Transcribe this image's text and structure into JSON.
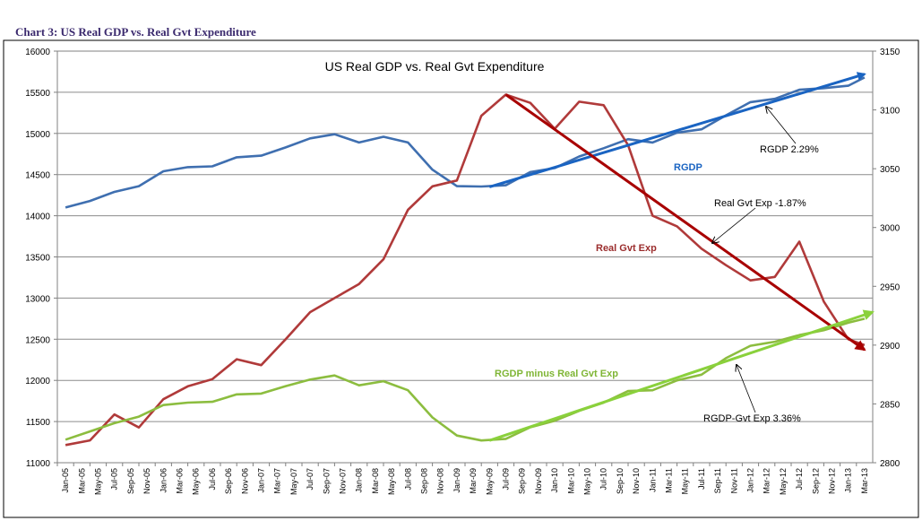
{
  "caption": "Chart 3: US Real GDP vs. Real Gvt Expenditure",
  "colors": {
    "rgdp": "#3f6fb0",
    "rgdp_trend": "#1a64c2",
    "gvt": "#b03a3a",
    "gvt_trend": "#a80000",
    "diff": "#8cbd3f",
    "diff_trend": "#8ad13c",
    "caption": "#3b2a6e"
  },
  "chart_data": {
    "type": "line",
    "title": "US Real GDP vs. Real Gvt Expenditure",
    "left_axis": {
      "min": 11000,
      "max": 16000,
      "step": 500
    },
    "right_axis": {
      "min": 2800,
      "max": 3150,
      "step": 50
    },
    "grid": true,
    "x_labels": [
      "Jan-05",
      "Mar-05",
      "May-05",
      "Jul-05",
      "Sep-05",
      "Nov-05",
      "Jan-06",
      "Mar-06",
      "May-06",
      "Jul-06",
      "Sep-06",
      "Nov-06",
      "Jan-07",
      "Mar-07",
      "May-07",
      "Jul-07",
      "Sep-07",
      "Nov-07",
      "Jan-08",
      "Mar-08",
      "May-08",
      "Jul-08",
      "Sep-08",
      "Nov-08",
      "Jan-09",
      "Mar-09",
      "May-09",
      "Jul-09",
      "Sep-09",
      "Nov-09",
      "Jan-10",
      "Mar-10",
      "May-10",
      "Jul-10",
      "Sep-10",
      "Nov-10",
      "Jan-11",
      "Mar-11",
      "May-11",
      "Jul-11",
      "Sep-11",
      "Nov-11",
      "Jan-12",
      "Mar-12",
      "May-12",
      "Jul-12",
      "Sep-12",
      "Nov-12",
      "Jan-13",
      "Mar-13"
    ],
    "series": [
      {
        "key": "rgdp",
        "name": "RGDP",
        "axis": "left",
        "x": [
          0,
          1.5,
          3,
          4.5,
          6,
          7.5,
          9,
          10.5,
          12,
          13.5,
          15,
          16.5,
          18,
          19.5,
          21,
          22.5,
          24,
          25.5,
          27,
          28.5,
          30,
          31.5,
          33,
          34.5,
          36,
          37.5,
          39,
          40.5,
          42,
          43.5,
          45,
          46.5,
          48,
          49
        ],
        "values": [
          14100,
          14180,
          14290,
          14360,
          14540,
          14590,
          14600,
          14710,
          14730,
          14830,
          14940,
          14990,
          14890,
          14960,
          14890,
          14560,
          14360,
          14355,
          14370,
          14530,
          14580,
          14720,
          14820,
          14930,
          14890,
          15010,
          15050,
          15220,
          15380,
          15420,
          15530,
          15550,
          15580,
          15680
        ]
      },
      {
        "key": "gvt",
        "name": "Real Gvt Exp",
        "axis": "right",
        "x": [
          0,
          1.5,
          3,
          4.5,
          6,
          7.5,
          9,
          10.5,
          12,
          13.5,
          15,
          16.5,
          18,
          19.5,
          21,
          22.5,
          24,
          25.5,
          27,
          28.5,
          30,
          31.5,
          33,
          34.5,
          36,
          37.5,
          39,
          40.5,
          42,
          43.5,
          45,
          46.5,
          48,
          49
        ],
        "values": [
          2815,
          2819,
          2841,
          2830,
          2854,
          2865,
          2871,
          2888,
          2883,
          2905,
          2928,
          2940,
          2952,
          2973,
          3015,
          3035,
          3040,
          3095,
          3113,
          3106,
          3084,
          3107,
          3104,
          3070,
          3010,
          3001,
          2982,
          2968,
          2955,
          2958,
          2988,
          2937,
          2905,
          2900
        ]
      },
      {
        "key": "diff",
        "name": "RGDP minus Real Gvt Exp",
        "axis": "left",
        "x": [
          0,
          1.5,
          3,
          4.5,
          6,
          7.5,
          9,
          10.5,
          12,
          13.5,
          15,
          16.5,
          18,
          19.5,
          21,
          22.5,
          24,
          25.5,
          27,
          28.5,
          30,
          31.5,
          33,
          34.5,
          36,
          37.5,
          39,
          40.5,
          42,
          43.5,
          45,
          46.5,
          48,
          49
        ],
        "values": [
          11280,
          11380,
          11480,
          11560,
          11700,
          11730,
          11740,
          11830,
          11840,
          11930,
          12010,
          12060,
          11940,
          11990,
          11880,
          11550,
          11330,
          11270,
          11290,
          11430,
          11510,
          11630,
          11730,
          11870,
          11880,
          12000,
          12070,
          12270,
          12420,
          12470,
          12550,
          12610,
          12700,
          12750
        ]
      }
    ],
    "trendlines": [
      {
        "key": "rgdp_trend",
        "axis": "left",
        "from": [
          26,
          14350
        ],
        "to": [
          49,
          15720
        ]
      },
      {
        "key": "gvt_trend",
        "axis": "right",
        "from": [
          27,
          3113
        ],
        "to": [
          49,
          2896
        ]
      },
      {
        "key": "diff_trend",
        "axis": "left",
        "from": [
          26,
          11270
        ],
        "to": [
          49.5,
          12830
        ]
      }
    ],
    "annotations": {
      "rgdp_rate": "RGDP 2.29%",
      "gvt_rate": "Real Gvt Exp -1.87%",
      "diff_rate": "RGDP-Gvt Exp 3.36%"
    },
    "series_labels": {
      "rgdp": "RGDP",
      "gvt": "Real Gvt Exp",
      "diff": "RGDP minus Real Gvt Exp"
    }
  }
}
